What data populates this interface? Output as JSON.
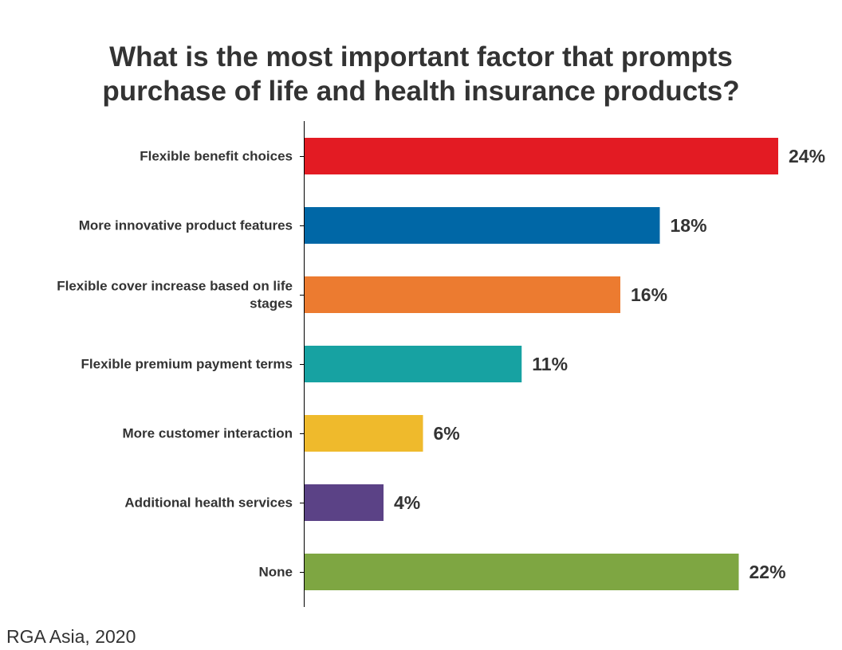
{
  "chart_data": {
    "type": "bar",
    "orientation": "horizontal",
    "title_lines": [
      "What is the most important factor that prompts",
      "purchase of life and health insurance products?"
    ],
    "categories": [
      [
        "Flexible benefit choices"
      ],
      [
        "More innovative product features"
      ],
      [
        "Flexible cover increase based on life",
        "stages"
      ],
      [
        "Flexible premium payment terms"
      ],
      [
        "More customer interaction"
      ],
      [
        "Additional health services"
      ],
      [
        "None"
      ]
    ],
    "values": [
      24,
      18,
      16,
      11,
      6,
      4,
      22
    ],
    "value_labels": [
      "24%",
      "18%",
      "16%",
      "11%",
      "6%",
      "4%",
      "22%"
    ],
    "colors": [
      "#e31b23",
      "#0067a6",
      "#ec7b30",
      "#17a2a2",
      "#efba2c",
      "#5b4286",
      "#7ea642"
    ],
    "xlim": [
      0,
      24
    ],
    "grid": false,
    "legend": "none"
  },
  "source": "RGA Asia, 2020"
}
